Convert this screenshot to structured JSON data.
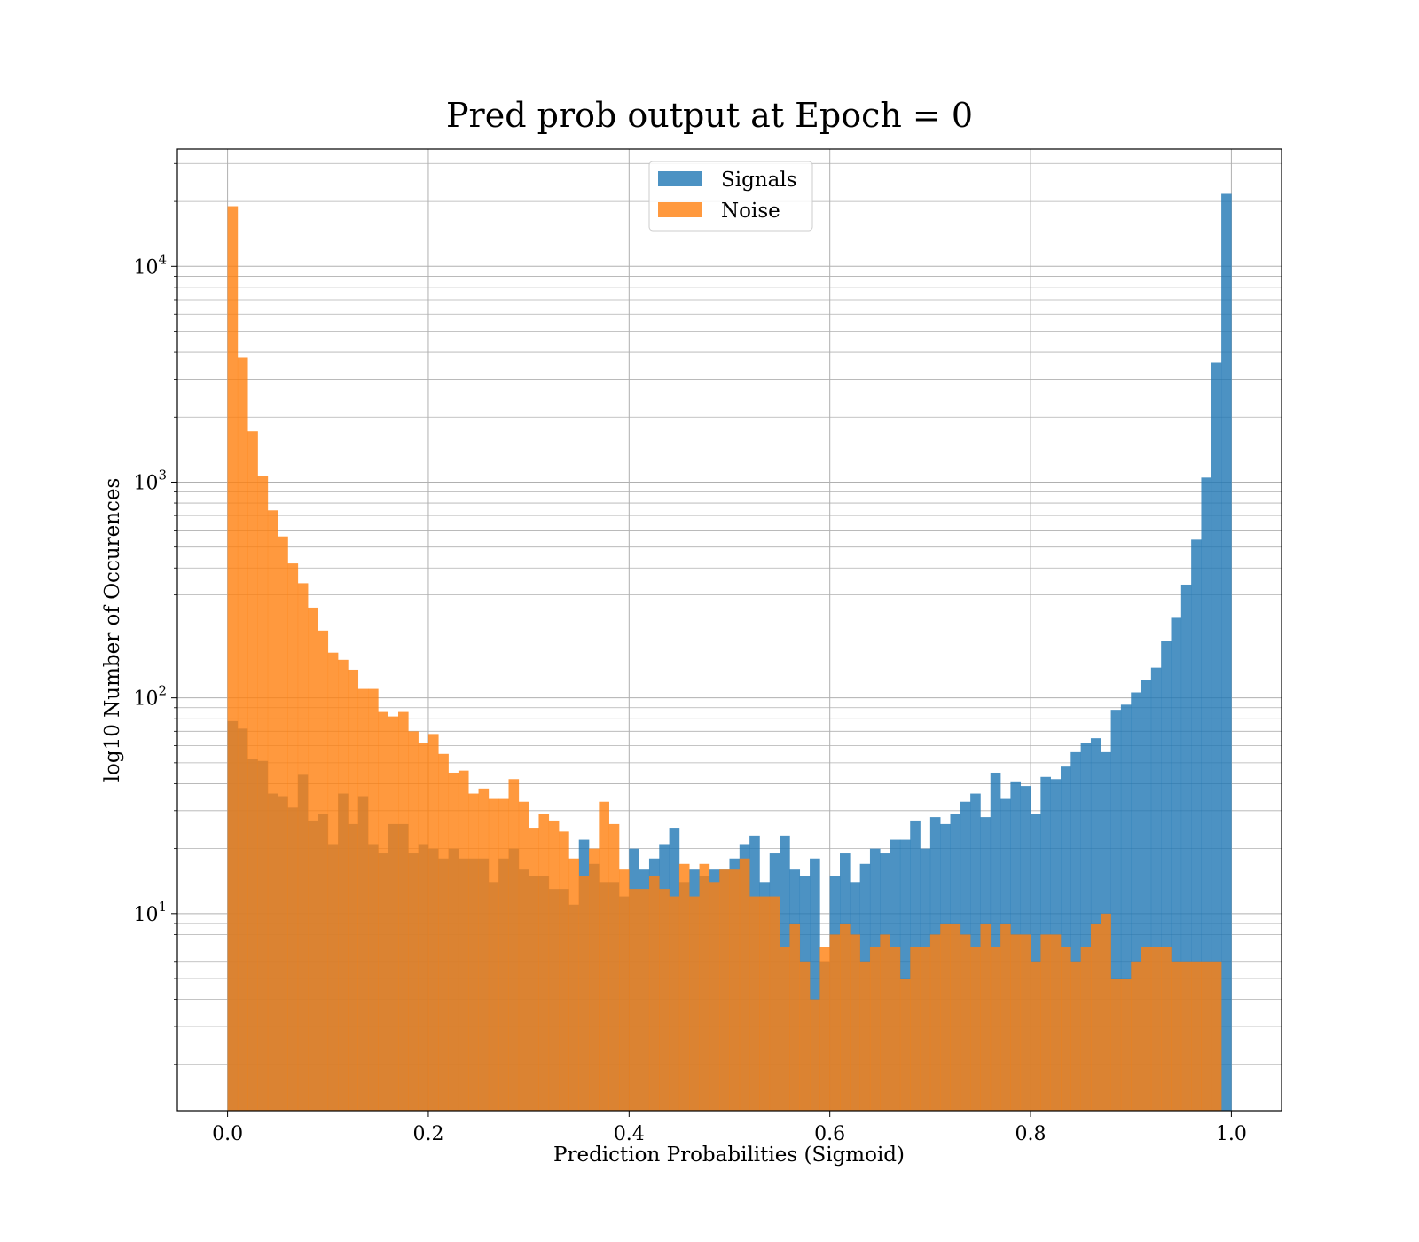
{
  "chart_data": {
    "type": "bar",
    "title": "Pred prob output at Epoch = 0",
    "xlabel": "Prediction Probabilities (Sigmoid)",
    "ylabel": "log10 Number of Occurences",
    "y_scale": "log",
    "xlim": [
      -0.05,
      1.05
    ],
    "ylim": [
      1.22,
      35000
    ],
    "bin_start": 0.0,
    "bin_width": 0.01,
    "x_ticks": [
      0.0,
      0.2,
      0.4,
      0.6,
      0.8,
      1.0
    ],
    "x_tick_labels": [
      "0.0",
      "0.2",
      "0.4",
      "0.6",
      "0.8",
      "1.0"
    ],
    "y_ticks": [
      {
        "value": 10,
        "base": "10",
        "exp": "1"
      },
      {
        "value": 100,
        "base": "10",
        "exp": "2"
      },
      {
        "value": 1000,
        "base": "10",
        "exp": "3"
      },
      {
        "value": 10000,
        "base": "10",
        "exp": "4"
      }
    ],
    "grid": true,
    "legend_position": "top-center",
    "series": [
      {
        "name": "Signals",
        "color": "#1f77b4",
        "opacity": 0.8,
        "values": [
          78,
          72,
          52,
          51,
          36,
          35,
          31,
          44,
          27,
          29,
          21,
          36,
          26,
          35,
          21,
          19,
          26,
          26,
          19,
          21,
          20,
          18,
          20,
          18,
          18,
          18,
          14,
          18,
          20,
          16,
          15,
          15,
          13,
          13,
          11,
          22,
          17,
          14,
          14,
          12,
          20,
          16,
          18,
          21,
          25,
          14,
          16,
          15,
          16,
          16,
          18,
          21,
          23,
          14,
          19,
          23,
          16,
          15,
          18,
          6,
          15,
          19,
          14,
          17,
          20,
          19,
          22,
          22,
          27,
          20,
          28,
          26,
          29,
          33,
          36,
          28,
          45,
          34,
          41,
          39,
          29,
          43,
          42,
          48,
          56,
          62,
          65,
          56,
          88,
          93,
          106,
          121,
          138,
          183,
          235,
          335,
          541,
          1050,
          3590,
          21700
        ]
      },
      {
        "name": "Noise",
        "color": "#ff7f0e",
        "opacity": 0.8,
        "values": [
          19000,
          3800,
          1720,
          1070,
          740,
          560,
          420,
          340,
          262,
          205,
          162,
          150,
          135,
          110,
          110,
          86,
          82,
          86,
          70,
          62,
          68,
          55,
          45,
          46,
          36,
          38,
          34,
          34,
          42,
          33,
          25,
          29,
          27,
          24,
          18,
          15,
          20,
          33,
          26,
          16,
          13,
          13,
          15,
          13,
          12,
          17,
          12,
          17,
          14,
          16,
          16,
          18,
          12,
          12,
          12,
          7,
          9,
          6,
          4,
          7,
          8,
          9,
          8,
          6,
          7,
          8,
          7,
          5,
          7,
          7,
          8,
          9,
          9,
          8,
          7,
          9,
          7,
          9,
          8,
          8,
          6,
          8,
          8,
          7,
          6,
          7,
          9,
          10,
          5,
          5,
          6,
          7,
          7,
          7,
          6,
          6,
          6,
          6,
          6,
          0
        ]
      }
    ]
  }
}
